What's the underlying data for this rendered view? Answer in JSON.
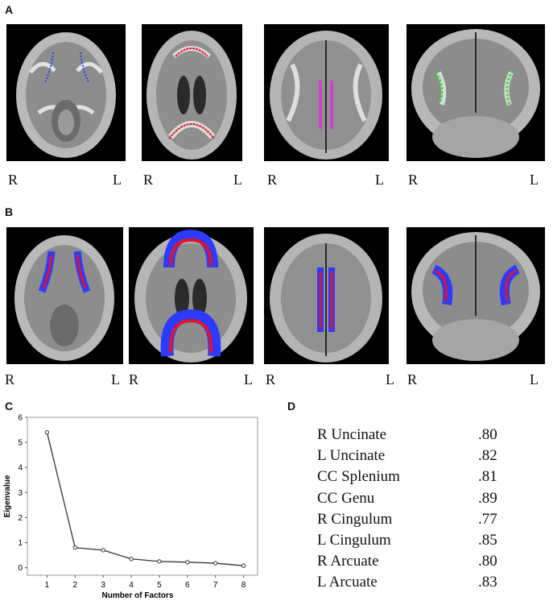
{
  "panels": {
    "a": "A",
    "b": "B",
    "c": "C",
    "d": "D"
  },
  "orientation": {
    "right": "R",
    "left": "L"
  },
  "colors": {
    "tract_blue": "#2b3bff",
    "tract_red": "#e0142a",
    "tract_magenta": "#e02be0",
    "tract_green": "#33dd33"
  },
  "chart_data": {
    "type": "line",
    "x": [
      1,
      2,
      3,
      4,
      5,
      6,
      7,
      8
    ],
    "y": [
      5.4,
      0.8,
      0.7,
      0.35,
      0.25,
      0.22,
      0.18,
      0.08
    ],
    "xlabel": "Number of Factors",
    "ylabel": "Eigenvalue",
    "xlim": [
      0.3,
      8.5
    ],
    "ylim": [
      -0.3,
      6
    ],
    "xticks": [
      "1",
      "2",
      "3",
      "4",
      "5",
      "6",
      "7",
      "8"
    ],
    "yticks": [
      "0",
      "1",
      "2",
      "3",
      "4",
      "5",
      "6"
    ]
  },
  "reliability": [
    {
      "name": "R Uncinate",
      "value": ".80"
    },
    {
      "name": "L Uncinate",
      "value": ".82"
    },
    {
      "name": "CC Splenium",
      "value": ".81"
    },
    {
      "name": "CC Genu",
      "value": ".89"
    },
    {
      "name": "R Cingulum",
      "value": ".77"
    },
    {
      "name": "L Cingulum",
      "value": ".85"
    },
    {
      "name": "R Arcuate",
      "value": ".80"
    },
    {
      "name": "L Arcuate",
      "value": ".83"
    }
  ]
}
